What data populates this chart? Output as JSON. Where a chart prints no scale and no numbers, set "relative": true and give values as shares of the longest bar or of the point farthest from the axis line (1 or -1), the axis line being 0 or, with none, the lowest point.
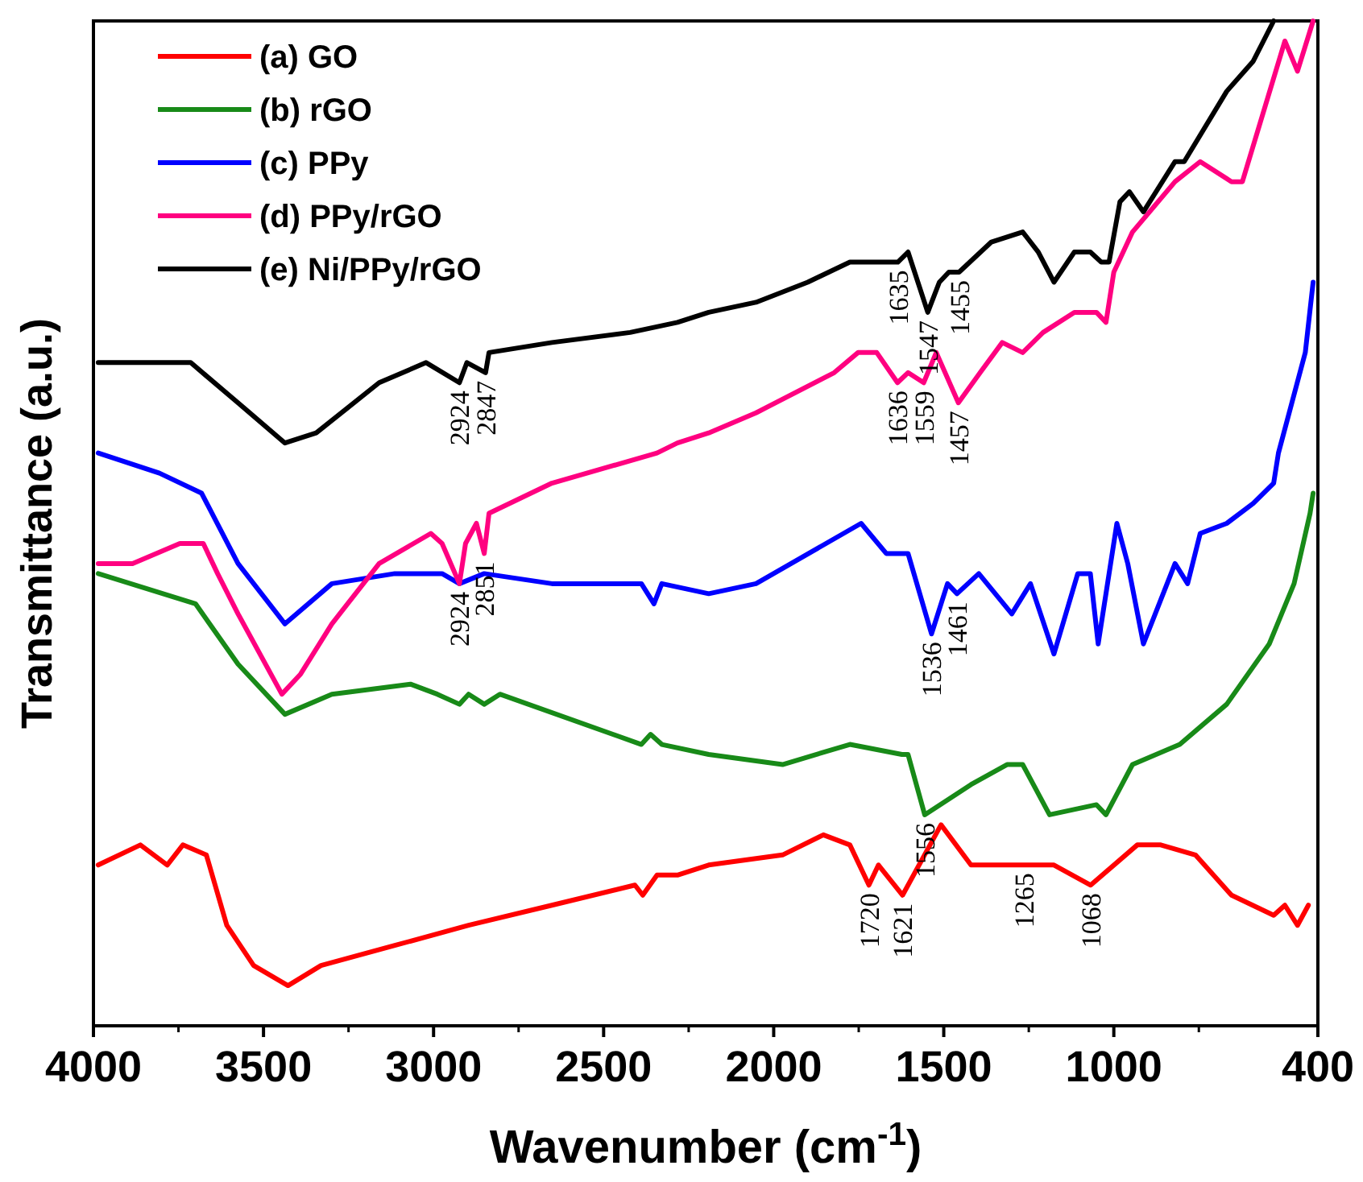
{
  "chart_data": {
    "type": "line",
    "relative": true,
    "xlabel": "Wavenumber (cm$^{-1}$)",
    "ylabel": "Transmittance (a.u.)",
    "xlim": [
      4000,
      400
    ],
    "xticks": [
      4000,
      {
        "value": 3750,
        "label": null
      },
      3500,
      {
        "value": 3250,
        "label": null
      },
      3000,
      {
        "value": 2750,
        "label": null
      },
      2500,
      {
        "value": 2250,
        "label": null
      },
      2000,
      {
        "value": 1750,
        "label": null
      },
      1500,
      {
        "value": 1250,
        "label": null
      },
      1000,
      {
        "value": 750,
        "label": null
      },
      400
    ],
    "legend": "top left",
    "marker": "none",
    "line_style": "solid",
    "grid": false,
    "series": [
      {
        "name": "(a) GO",
        "color": "#ff0000",
        "x": [
          3986,
          3862,
          3783,
          3737,
          3668,
          3608,
          3529,
          3428,
          3331,
          3114,
          2897,
          2652,
          2408,
          2385,
          2343,
          2283,
          2191,
          1974,
          1854,
          1776,
          1720,
          1692,
          1621,
          1508,
          1420,
          1300,
          1265,
          1176,
          1068,
          931,
          862,
          760,
          654,
          530,
          497,
          460,
          428
        ],
        "values": [
          0.16,
          0.18,
          0.16,
          0.18,
          0.17,
          0.1,
          0.06,
          0.04,
          0.06,
          0.08,
          0.1,
          0.12,
          0.14,
          0.13,
          0.15,
          0.15,
          0.16,
          0.17,
          0.19,
          0.18,
          0.14,
          0.16,
          0.13,
          0.2,
          0.16,
          0.16,
          0.16,
          0.16,
          0.14,
          0.18,
          0.18,
          0.17,
          0.13,
          0.11,
          0.12,
          0.1,
          0.12
        ]
      },
      {
        "name": "(b) rGO",
        "color": "#188a18",
        "x": [
          3986,
          3700,
          3575,
          3437,
          3299,
          3068,
          2989,
          2924,
          2897,
          2851,
          2805,
          2389,
          2362,
          2329,
          2191,
          1974,
          1776,
          1623,
          1605,
          1556,
          1420,
          1314,
          1268,
          1189,
          1051,
          1023,
          945,
          806,
          668,
          543,
          470,
          423,
          414
        ],
        "values": [
          0.45,
          0.42,
          0.36,
          0.31,
          0.33,
          0.34,
          0.33,
          0.32,
          0.33,
          0.32,
          0.33,
          0.28,
          0.29,
          0.28,
          0.27,
          0.26,
          0.28,
          0.27,
          0.27,
          0.21,
          0.24,
          0.26,
          0.26,
          0.21,
          0.22,
          0.21,
          0.26,
          0.28,
          0.32,
          0.38,
          0.44,
          0.51,
          0.53
        ]
      },
      {
        "name": "(c) PPy",
        "color": "#0000ff",
        "x": [
          3986,
          3806,
          3682,
          3575,
          3437,
          3299,
          3114,
          2975,
          2924,
          2851,
          2652,
          2389,
          2352,
          2329,
          2191,
          2052,
          1743,
          1669,
          1605,
          1536,
          1489,
          1461,
          1397,
          1300,
          1245,
          1176,
          1106,
          1069,
          1046,
          991,
          959,
          913,
          820,
          783,
          746,
          668,
          590,
          530,
          516,
          437,
          414
        ],
        "values": [
          0.57,
          0.55,
          0.53,
          0.46,
          0.4,
          0.44,
          0.45,
          0.45,
          0.44,
          0.45,
          0.44,
          0.44,
          0.42,
          0.44,
          0.43,
          0.44,
          0.5,
          0.47,
          0.47,
          0.39,
          0.44,
          0.43,
          0.45,
          0.41,
          0.44,
          0.37,
          0.45,
          0.45,
          0.38,
          0.5,
          0.46,
          0.38,
          0.46,
          0.44,
          0.49,
          0.5,
          0.52,
          0.54,
          0.57,
          0.67,
          0.74
        ]
      },
      {
        "name": "(d) PPy/rGO",
        "color": "#ff0080",
        "x": [
          3986,
          3885,
          3746,
          3677,
          3635,
          3575,
          3446,
          3391,
          3299,
          3160,
          3008,
          2975,
          2924,
          2906,
          2874,
          2851,
          2837,
          2652,
          2343,
          2283,
          2191,
          2052,
          1822,
          1752,
          1697,
          1636,
          1605,
          1559,
          1522,
          1457,
          1393,
          1328,
          1268,
          1208,
          1116,
          1051,
          1023,
          1000,
          945,
          820,
          746,
          654,
          622,
          497,
          460,
          414
        ],
        "values": [
          0.46,
          0.46,
          0.48,
          0.48,
          0.45,
          0.41,
          0.33,
          0.35,
          0.4,
          0.46,
          0.49,
          0.48,
          0.44,
          0.48,
          0.5,
          0.47,
          0.51,
          0.54,
          0.57,
          0.58,
          0.59,
          0.61,
          0.65,
          0.67,
          0.67,
          0.64,
          0.65,
          0.64,
          0.67,
          0.62,
          0.65,
          0.68,
          0.67,
          0.69,
          0.71,
          0.71,
          0.7,
          0.75,
          0.79,
          0.84,
          0.86,
          0.84,
          0.84,
          0.98,
          0.95,
          1.0
        ]
      },
      {
        "name": "(e) Ni/PPy/rGO",
        "color": "#000000",
        "x": [
          3986,
          3922,
          3714,
          3575,
          3437,
          3345,
          3160,
          3022,
          2924,
          2902,
          2847,
          2837,
          2652,
          2422,
          2283,
          2191,
          2052,
          1900,
          1776,
          1697,
          1635,
          1605,
          1547,
          1513,
          1485,
          1455,
          1360,
          1268,
          1222,
          1176,
          1116,
          1069,
          1037,
          1014,
          982,
          954,
          913,
          820,
          793,
          668,
          590,
          530
        ],
        "values": [
          0.66,
          0.66,
          0.66,
          0.62,
          0.58,
          0.59,
          0.64,
          0.66,
          0.64,
          0.66,
          0.65,
          0.67,
          0.68,
          0.69,
          0.7,
          0.71,
          0.72,
          0.74,
          0.76,
          0.76,
          0.76,
          0.77,
          0.71,
          0.74,
          0.75,
          0.75,
          0.78,
          0.79,
          0.77,
          0.74,
          0.77,
          0.77,
          0.76,
          0.76,
          0.82,
          0.83,
          0.81,
          0.86,
          0.86,
          0.93,
          0.96,
          1.0
        ]
      }
    ],
    "annotations": [
      {
        "text": "2924",
        "x": 2924,
        "y": 0.64
      },
      {
        "text": "2847",
        "x": 2847,
        "y": 0.65
      },
      {
        "text": "1635",
        "x": 1635,
        "y": 0.76
      },
      {
        "text": "1547",
        "x": 1547,
        "y": 0.71
      },
      {
        "text": "1455",
        "x": 1455,
        "y": 0.75
      },
      {
        "text": "1636",
        "x": 1636,
        "y": 0.64
      },
      {
        "text": "1559",
        "x": 1559,
        "y": 0.64
      },
      {
        "text": "1457",
        "x": 1457,
        "y": 0.62
      },
      {
        "text": "2924",
        "x": 2924,
        "y": 0.44
      },
      {
        "text": "2851",
        "x": 2851,
        "y": 0.47
      },
      {
        "text": "1536",
        "x": 1536,
        "y": 0.39
      },
      {
        "text": "1461",
        "x": 1461,
        "y": 0.43
      },
      {
        "text": "1556",
        "x": 1556,
        "y": 0.21
      },
      {
        "text": "1720",
        "x": 1720,
        "y": 0.14
      },
      {
        "text": "1621",
        "x": 1621,
        "y": 0.13
      },
      {
        "text": "1265",
        "x": 1265,
        "y": 0.16
      },
      {
        "text": "1068",
        "x": 1068,
        "y": 0.14
      }
    ]
  }
}
